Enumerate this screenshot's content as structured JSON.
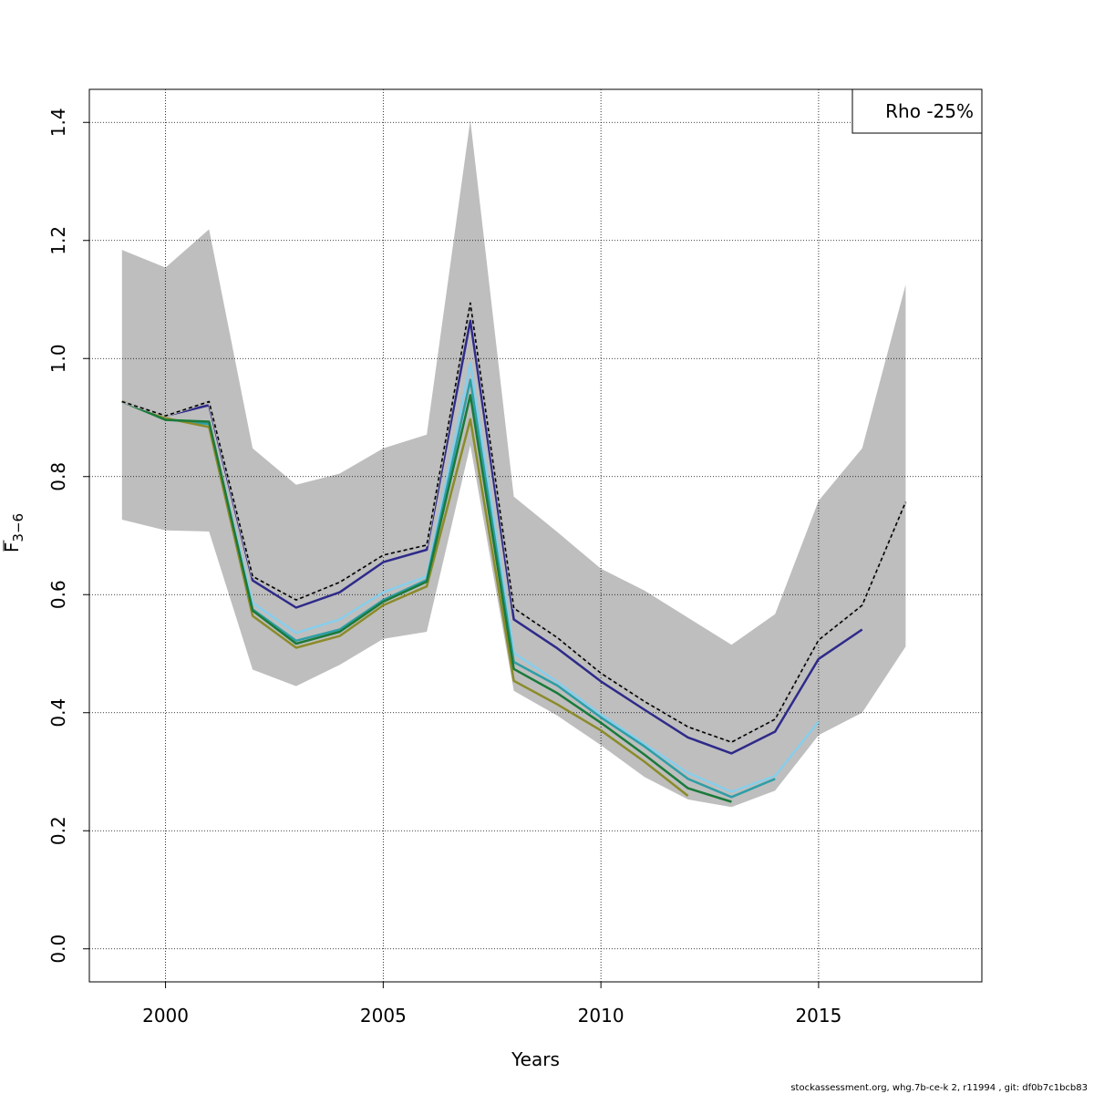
{
  "chart_data": {
    "type": "line",
    "xlabel": "Years",
    "ylabel": {
      "main": "F",
      "sub": "3−6"
    },
    "xlim": [
      1998.25,
      2018.75
    ],
    "ylim": [
      -0.056,
      1.456
    ],
    "xticks": [
      2000,
      2005,
      2010,
      2015
    ],
    "xtick_labels": [
      "2000",
      "2005",
      "2010",
      "2015"
    ],
    "yticks": [
      0.0,
      0.2,
      0.4,
      0.6,
      0.8,
      1.0,
      1.2,
      1.4
    ],
    "ytick_labels": [
      "0.0",
      "0.2",
      "0.4",
      "0.6",
      "0.8",
      "1.0",
      "1.2",
      "1.4"
    ],
    "grid": true,
    "legend": {
      "text": "Rho -25%",
      "placement": "top-right"
    },
    "band": {
      "color": "#bebebe",
      "x": [
        1999,
        2000,
        2001,
        2002,
        2003,
        2004,
        2005,
        2006,
        2007,
        2008,
        2009,
        2010,
        2011,
        2012,
        2013,
        2014,
        2015,
        2016,
        2017
      ],
      "upper": [
        1.184,
        1.154,
        1.219,
        0.848,
        0.786,
        0.805,
        0.848,
        0.871,
        1.404,
        0.766,
        0.706,
        0.644,
        0.607,
        0.561,
        0.515,
        0.567,
        0.759,
        0.848,
        1.125
      ],
      "lower": [
        0.727,
        0.709,
        0.707,
        0.473,
        0.445,
        0.481,
        0.525,
        0.537,
        0.853,
        0.437,
        0.395,
        0.345,
        0.291,
        0.253,
        0.24,
        0.268,
        0.362,
        0.4,
        0.512
      ]
    },
    "series": [
      {
        "color": "#a0a0a0",
        "width": 2.5,
        "dash": false,
        "x": [
          1999,
          2000,
          2001,
          2002,
          2003,
          2004,
          2005,
          2006,
          2007,
          2008,
          2009,
          2010,
          2011,
          2012,
          2013,
          2014,
          2015,
          2016,
          2017
        ],
        "values": [
          0.927,
          0.903,
          0.927,
          0.631,
          0.591,
          0.621,
          0.667,
          0.684,
          1.094,
          0.577,
          0.527,
          0.467,
          0.419,
          0.376,
          0.35,
          0.389,
          0.523,
          0.582,
          0.757
        ]
      },
      {
        "color": "#87ceeb",
        "width": 2.5,
        "dash": false,
        "x": [
          1999,
          2000,
          2001,
          2002,
          2003,
          2004,
          2005,
          2006,
          2007,
          2008,
          2009,
          2010,
          2011,
          2012,
          2013,
          2014,
          2015
        ],
        "values": [
          0.927,
          0.897,
          0.889,
          0.586,
          0.535,
          0.558,
          0.604,
          0.631,
          0.992,
          0.501,
          0.452,
          0.397,
          0.347,
          0.298,
          0.266,
          0.293,
          0.385
        ]
      },
      {
        "color": "#2e9ea6",
        "width": 2.5,
        "dash": false,
        "x": [
          1999,
          2000,
          2001,
          2002,
          2003,
          2004,
          2005,
          2006,
          2007,
          2008,
          2009,
          2010,
          2011,
          2012,
          2013,
          2014
        ],
        "values": [
          0.927,
          0.897,
          0.889,
          0.575,
          0.522,
          0.541,
          0.591,
          0.625,
          0.964,
          0.486,
          0.446,
          0.392,
          0.343,
          0.288,
          0.257,
          0.288
        ]
      },
      {
        "color": "#8b8b2a",
        "width": 2.5,
        "dash": false,
        "x": [
          1999,
          2000,
          2001,
          2002,
          2003,
          2004,
          2005,
          2006,
          2007,
          2008,
          2009,
          2010,
          2011,
          2012
        ],
        "values": [
          0.928,
          0.899,
          0.884,
          0.564,
          0.51,
          0.53,
          0.582,
          0.614,
          0.897,
          0.454,
          0.414,
          0.37,
          0.317,
          0.259
        ]
      },
      {
        "color": "#1a7a3a",
        "width": 2.5,
        "dash": false,
        "x": [
          1999,
          2000,
          2001,
          2002,
          2003,
          2004,
          2005,
          2006,
          2007,
          2008,
          2009,
          2010,
          2011,
          2012,
          2013
        ],
        "values": [
          0.927,
          0.896,
          0.893,
          0.573,
          0.517,
          0.537,
          0.588,
          0.622,
          0.938,
          0.474,
          0.433,
          0.383,
          0.329,
          0.272,
          0.249
        ]
      },
      {
        "color": "#2e2a8a",
        "width": 2.5,
        "dash": false,
        "x": [
          1999,
          2000,
          2001,
          2002,
          2003,
          2004,
          2005,
          2006,
          2007,
          2008,
          2009,
          2010,
          2011,
          2012,
          2013,
          2014,
          2015,
          2016
        ],
        "values": [
          0.927,
          0.903,
          0.921,
          0.624,
          0.578,
          0.604,
          0.655,
          0.676,
          1.064,
          0.558,
          0.509,
          0.453,
          0.405,
          0.358,
          0.331,
          0.368,
          0.491,
          0.541
        ]
      },
      {
        "color": "#000000",
        "width": 1.6,
        "dash": true,
        "x": [
          1999,
          2000,
          2001,
          2002,
          2003,
          2004,
          2005,
          2006,
          2007,
          2008,
          2009,
          2010,
          2011,
          2012,
          2013,
          2014,
          2015,
          2016,
          2017
        ],
        "values": [
          0.927,
          0.903,
          0.927,
          0.631,
          0.591,
          0.621,
          0.667,
          0.684,
          1.094,
          0.577,
          0.527,
          0.467,
          0.419,
          0.376,
          0.35,
          0.389,
          0.523,
          0.582,
          0.757
        ]
      }
    ]
  },
  "footer": "stockassessment.org, whg.7b-ce-k  2, r11994 , git: df0b7c1bcb83"
}
